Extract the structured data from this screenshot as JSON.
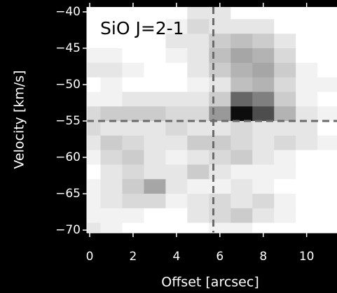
{
  "chart_data": {
    "type": "heatmap",
    "annotation": "SiO J=2-1",
    "xlabel": "Offset [arcsec]",
    "ylabel": "Velocity [km/s]",
    "x": [
      0,
      1,
      2,
      3,
      4,
      5,
      6,
      7,
      8,
      9,
      10,
      11
    ],
    "y": [
      -40,
      -42,
      -44,
      -46,
      -48,
      -50,
      -52,
      -54,
      -56,
      -58,
      -60,
      -62,
      -64,
      -66,
      -68,
      -70
    ],
    "z": [
      [
        0,
        0,
        0,
        0,
        0,
        0.1,
        0.1,
        0,
        0,
        0,
        0,
        0
      ],
      [
        0,
        0,
        0,
        0,
        0.05,
        0.15,
        0.1,
        0.1,
        0.1,
        0,
        0,
        0
      ],
      [
        0,
        0,
        0,
        0,
        0.1,
        0.1,
        0.2,
        0.25,
        0.2,
        0.1,
        0,
        0
      ],
      [
        0.05,
        0.05,
        0,
        0,
        0.05,
        0.1,
        0.25,
        0.35,
        0.3,
        0.15,
        0,
        0
      ],
      [
        0.1,
        0.1,
        0.05,
        0,
        0,
        0.1,
        0.2,
        0.3,
        0.35,
        0.2,
        0.05,
        0
      ],
      [
        0,
        0.05,
        0,
        0,
        0,
        0.05,
        0.1,
        0.25,
        0.3,
        0.15,
        0.05,
        0.05
      ],
      [
        0.05,
        0.05,
        0.1,
        0.1,
        0.1,
        0.1,
        0.2,
        0.6,
        0.5,
        0.2,
        0.05,
        0
      ],
      [
        0.15,
        0.2,
        0.2,
        0.2,
        0.15,
        0.15,
        0.4,
        0.95,
        0.7,
        0.3,
        0.1,
        0.05
      ],
      [
        0.15,
        0.1,
        0.1,
        0.1,
        0.15,
        0.1,
        0.1,
        0.15,
        0.1,
        0.1,
        0.1,
        0
      ],
      [
        0.1,
        0.2,
        0.15,
        0.1,
        0.1,
        0.2,
        0.2,
        0.15,
        0.1,
        0.15,
        0.1,
        0.05
      ],
      [
        0.05,
        0.15,
        0.2,
        0.1,
        0.05,
        0.1,
        0.15,
        0.2,
        0.1,
        0.05,
        0,
        0
      ],
      [
        0,
        0.1,
        0.15,
        0.1,
        0.1,
        0.2,
        0.1,
        0.05,
        0.05,
        0.05,
        0,
        0
      ],
      [
        0.05,
        0.1,
        0.2,
        0.35,
        0.1,
        0.05,
        0.05,
        0.1,
        0.05,
        0,
        0,
        0
      ],
      [
        0.05,
        0.1,
        0.15,
        0.15,
        0.05,
        0.1,
        0.15,
        0.1,
        0.15,
        0.05,
        0,
        0
      ],
      [
        0.05,
        0.05,
        0.05,
        0,
        0,
        0.1,
        0.15,
        0.2,
        0.1,
        0.05,
        0,
        0
      ],
      [
        0.1,
        0.05,
        0,
        0,
        0,
        0,
        0.05,
        0.05,
        0,
        0,
        0,
        0
      ]
    ],
    "colormap": "gray_r",
    "xlim": [
      -0.13,
      11.4
    ],
    "ylim": [
      -70.38,
      -39.33
    ],
    "xticks": [
      0,
      2,
      4,
      6,
      8,
      10
    ],
    "yticks": [
      {
        "value": -40,
        "label": "−40"
      },
      {
        "value": -45,
        "label": "−45"
      },
      {
        "value": -50,
        "label": "−50"
      },
      {
        "value": -55,
        "label": "−55"
      },
      {
        "value": -60,
        "label": "−60"
      },
      {
        "value": -65,
        "label": "−65"
      },
      {
        "value": -70,
        "label": "−70"
      }
    ],
    "vline": 5.7,
    "hline": -55,
    "line_color": "#6b6b6b"
  }
}
